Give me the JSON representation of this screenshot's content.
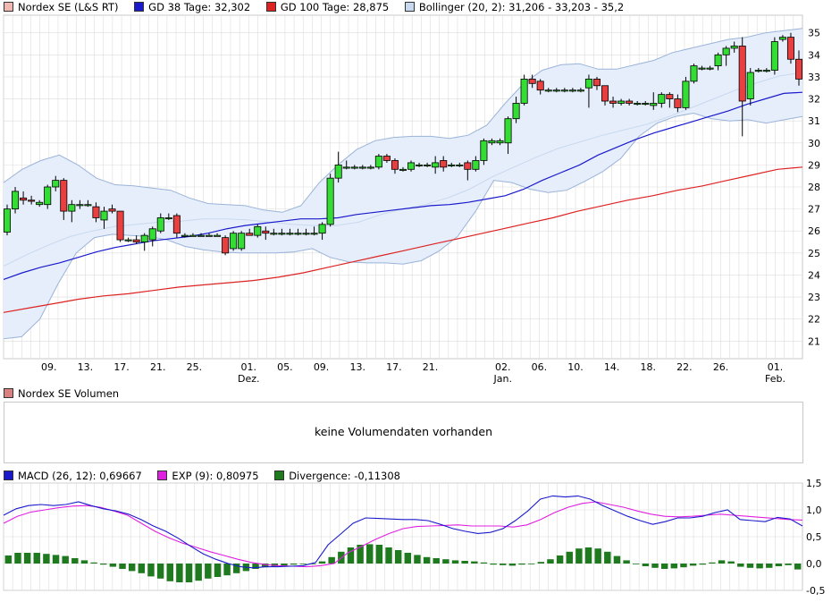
{
  "colors": {
    "up_candle": "#33dd33",
    "down_candle": "#e84040",
    "sma38": "#1a1acc",
    "sma100": "#dd2222",
    "bollinger_fill": "#e6eefb",
    "bollinger_band": "#9ab3d8",
    "bollinger_mid": "#c8d8ee",
    "macd": "#1a1acc",
    "signal": "#e020e0",
    "histogram": "#1f7a1f",
    "grid": "#dcdcdc"
  },
  "legend": {
    "price": "Nordex SE (L&S RT)",
    "sma38": "GD 38 Tage: 32,302",
    "sma100": "GD 100 Tage: 28,875",
    "bollinger": "Bollinger (20, 2): 31,206 - 33,203 - 35,2",
    "volume": "Nordex SE Volumen",
    "macd": "MACD (26, 12): 0,69667",
    "exp": "EXP (9): 0,80975",
    "divergence": "Divergence: -0,11308"
  },
  "volume_panel": {
    "message": "keine Volumendaten vorhanden"
  },
  "chart_data": [
    {
      "type": "candlestick",
      "ylim": [
        20.2,
        35.8
      ],
      "y_ticks": [
        "21",
        "22",
        "23",
        "24",
        "25",
        "26",
        "27",
        "28",
        "29",
        "30",
        "31",
        "32",
        "33",
        "34",
        "35"
      ],
      "x_labels": [
        {
          "label": "09.",
          "index": 2
        },
        {
          "label": "13.",
          "index": 4
        },
        {
          "label": "17.",
          "index": 6
        },
        {
          "label": "21.",
          "index": 8
        },
        {
          "label": "25.",
          "index": 10
        },
        {
          "label": "01.",
          "index": 13,
          "month": "Dez."
        },
        {
          "label": "05.",
          "index": 15
        },
        {
          "label": "09.",
          "index": 17
        },
        {
          "label": "13.",
          "index": 19
        },
        {
          "label": "17.",
          "index": 21
        },
        {
          "label": "21.",
          "index": 23
        },
        {
          "label": "02.",
          "index": 27,
          "month": "Jan."
        },
        {
          "label": "06.",
          "index": 29
        },
        {
          "label": "10.",
          "index": 31
        },
        {
          "label": "14.",
          "index": 33
        },
        {
          "label": "18.",
          "index": 35
        },
        {
          "label": "22.",
          "index": 37
        },
        {
          "label": "26.",
          "index": 39
        },
        {
          "label": "01.",
          "index": 42,
          "month": "Feb."
        }
      ],
      "candles": [
        {
          "o": 25.95,
          "h": 27.2,
          "l": 25.8,
          "c": 27.0
        },
        {
          "o": 27.0,
          "h": 28.0,
          "l": 26.8,
          "c": 27.8
        },
        {
          "o": 27.5,
          "h": 27.8,
          "l": 27.2,
          "c": 27.4
        },
        {
          "o": 27.4,
          "h": 27.6,
          "l": 27.2,
          "c": 27.35
        },
        {
          "o": 27.2,
          "h": 27.4,
          "l": 27.1,
          "c": 27.3
        },
        {
          "o": 27.2,
          "h": 28.1,
          "l": 27.0,
          "c": 28.0
        },
        {
          "o": 28.0,
          "h": 28.5,
          "l": 27.8,
          "c": 28.3
        },
        {
          "o": 28.3,
          "h": 28.4,
          "l": 26.5,
          "c": 26.9
        },
        {
          "o": 26.9,
          "h": 27.4,
          "l": 26.4,
          "c": 27.2
        },
        {
          "o": 27.2,
          "h": 27.4,
          "l": 27.0,
          "c": 27.2
        },
        {
          "o": 27.2,
          "h": 27.4,
          "l": 27.1,
          "c": 27.2
        },
        {
          "o": 27.1,
          "h": 27.3,
          "l": 26.4,
          "c": 26.6
        },
        {
          "o": 26.5,
          "h": 27.1,
          "l": 26.1,
          "c": 26.9
        },
        {
          "o": 27.0,
          "h": 27.2,
          "l": 26.8,
          "c": 26.9
        },
        {
          "o": 26.9,
          "h": 26.9,
          "l": 25.5,
          "c": 25.6
        },
        {
          "o": 25.6,
          "h": 25.7,
          "l": 25.5,
          "c": 25.6
        },
        {
          "o": 25.6,
          "h": 25.8,
          "l": 25.4,
          "c": 25.5
        },
        {
          "o": 25.5,
          "h": 25.9,
          "l": 25.1,
          "c": 25.8
        },
        {
          "o": 25.6,
          "h": 26.2,
          "l": 25.3,
          "c": 26.1
        },
        {
          "o": 26.0,
          "h": 26.8,
          "l": 25.9,
          "c": 26.6
        },
        {
          "o": 26.6,
          "h": 26.8,
          "l": 26.5,
          "c": 26.6
        },
        {
          "o": 26.7,
          "h": 26.8,
          "l": 25.7,
          "c": 25.9
        },
        {
          "o": 25.8,
          "h": 25.9,
          "l": 25.7,
          "c": 25.8
        },
        {
          "o": 25.8,
          "h": 25.9,
          "l": 25.8,
          "c": 25.8
        },
        {
          "o": 25.8,
          "h": 25.9,
          "l": 25.8,
          "c": 25.8
        },
        {
          "o": 25.8,
          "h": 25.9,
          "l": 25.8,
          "c": 25.8
        },
        {
          "o": 25.8,
          "h": 25.9,
          "l": 25.8,
          "c": 25.8
        },
        {
          "o": 25.7,
          "h": 25.8,
          "l": 24.9,
          "c": 25.0
        },
        {
          "o": 25.2,
          "h": 26.0,
          "l": 25.1,
          "c": 25.9
        },
        {
          "o": 25.2,
          "h": 26.0,
          "l": 25.1,
          "c": 25.9
        },
        {
          "o": 25.9,
          "h": 26.1,
          "l": 25.8,
          "c": 25.8
        },
        {
          "o": 25.8,
          "h": 26.3,
          "l": 25.7,
          "c": 26.2
        },
        {
          "o": 26.0,
          "h": 26.2,
          "l": 25.6,
          "c": 25.9
        },
        {
          "o": 25.9,
          "h": 26.1,
          "l": 25.8,
          "c": 25.9
        },
        {
          "o": 25.9,
          "h": 26.1,
          "l": 25.8,
          "c": 25.9
        },
        {
          "o": 25.9,
          "h": 26.1,
          "l": 25.8,
          "c": 25.9
        },
        {
          "o": 25.9,
          "h": 26.1,
          "l": 25.8,
          "c": 25.9
        },
        {
          "o": 25.9,
          "h": 26.1,
          "l": 25.8,
          "c": 25.9
        },
        {
          "o": 25.9,
          "h": 26.2,
          "l": 25.8,
          "c": 25.9
        },
        {
          "o": 25.9,
          "h": 26.4,
          "l": 25.6,
          "c": 26.3
        },
        {
          "o": 26.3,
          "h": 28.6,
          "l": 26.2,
          "c": 28.4
        },
        {
          "o": 28.4,
          "h": 29.6,
          "l": 28.2,
          "c": 29.0
        },
        {
          "o": 28.9,
          "h": 29.2,
          "l": 28.8,
          "c": 28.9
        },
        {
          "o": 28.9,
          "h": 29.0,
          "l": 28.8,
          "c": 28.9
        },
        {
          "o": 28.9,
          "h": 29.0,
          "l": 28.8,
          "c": 28.9
        },
        {
          "o": 28.9,
          "h": 29.0,
          "l": 28.8,
          "c": 28.9
        },
        {
          "o": 28.9,
          "h": 29.5,
          "l": 28.8,
          "c": 29.4
        },
        {
          "o": 29.4,
          "h": 29.5,
          "l": 29.1,
          "c": 29.2
        },
        {
          "o": 29.2,
          "h": 29.3,
          "l": 28.6,
          "c": 28.8
        },
        {
          "o": 28.8,
          "h": 28.9,
          "l": 28.7,
          "c": 28.8
        },
        {
          "o": 28.8,
          "h": 29.2,
          "l": 28.7,
          "c": 29.1
        },
        {
          "o": 29.0,
          "h": 29.1,
          "l": 28.9,
          "c": 29.0
        },
        {
          "o": 29.0,
          "h": 29.1,
          "l": 28.9,
          "c": 29.0
        },
        {
          "o": 28.9,
          "h": 29.4,
          "l": 28.6,
          "c": 29.1
        },
        {
          "o": 29.2,
          "h": 29.4,
          "l": 28.7,
          "c": 28.9
        },
        {
          "o": 29.0,
          "h": 29.1,
          "l": 28.9,
          "c": 29.0
        },
        {
          "o": 29.0,
          "h": 29.1,
          "l": 28.9,
          "c": 29.0
        },
        {
          "o": 29.1,
          "h": 29.2,
          "l": 28.3,
          "c": 28.8
        },
        {
          "o": 28.8,
          "h": 29.4,
          "l": 28.7,
          "c": 29.2
        },
        {
          "o": 29.2,
          "h": 30.2,
          "l": 29.0,
          "c": 30.1
        },
        {
          "o": 30.0,
          "h": 30.2,
          "l": 29.9,
          "c": 30.1
        },
        {
          "o": 30.0,
          "h": 30.2,
          "l": 29.9,
          "c": 30.1
        },
        {
          "o": 30.0,
          "h": 31.2,
          "l": 29.5,
          "c": 31.1
        },
        {
          "o": 31.1,
          "h": 32.1,
          "l": 30.9,
          "c": 31.8
        },
        {
          "o": 31.8,
          "h": 33.1,
          "l": 31.7,
          "c": 32.9
        },
        {
          "o": 32.9,
          "h": 33.1,
          "l": 32.5,
          "c": 32.7
        },
        {
          "o": 32.8,
          "h": 32.9,
          "l": 32.2,
          "c": 32.4
        },
        {
          "o": 32.4,
          "h": 32.5,
          "l": 32.3,
          "c": 32.4
        },
        {
          "o": 32.4,
          "h": 32.5,
          "l": 32.3,
          "c": 32.4
        },
        {
          "o": 32.4,
          "h": 32.5,
          "l": 32.3,
          "c": 32.4
        },
        {
          "o": 32.4,
          "h": 32.5,
          "l": 32.3,
          "c": 32.4
        },
        {
          "o": 32.4,
          "h": 32.5,
          "l": 32.3,
          "c": 32.4
        },
        {
          "o": 32.5,
          "h": 33.1,
          "l": 31.6,
          "c": 32.9
        },
        {
          "o": 32.9,
          "h": 33.0,
          "l": 32.4,
          "c": 32.6
        },
        {
          "o": 32.6,
          "h": 32.6,
          "l": 31.7,
          "c": 31.9
        },
        {
          "o": 31.9,
          "h": 32.1,
          "l": 31.6,
          "c": 31.8
        },
        {
          "o": 31.8,
          "h": 32.0,
          "l": 31.7,
          "c": 31.9
        },
        {
          "o": 31.9,
          "h": 32.0,
          "l": 31.7,
          "c": 31.8
        },
        {
          "o": 31.8,
          "h": 31.9,
          "l": 31.7,
          "c": 31.8
        },
        {
          "o": 31.8,
          "h": 31.9,
          "l": 31.7,
          "c": 31.8
        },
        {
          "o": 31.7,
          "h": 32.3,
          "l": 31.5,
          "c": 31.8
        },
        {
          "o": 31.8,
          "h": 32.3,
          "l": 31.6,
          "c": 32.2
        },
        {
          "o": 32.2,
          "h": 32.3,
          "l": 31.6,
          "c": 32.0
        },
        {
          "o": 32.0,
          "h": 32.2,
          "l": 31.4,
          "c": 31.6
        },
        {
          "o": 31.6,
          "h": 33.0,
          "l": 31.5,
          "c": 32.8
        },
        {
          "o": 32.8,
          "h": 33.6,
          "l": 32.7,
          "c": 33.5
        },
        {
          "o": 33.4,
          "h": 33.5,
          "l": 33.3,
          "c": 33.4
        },
        {
          "o": 33.4,
          "h": 33.5,
          "l": 33.3,
          "c": 33.4
        },
        {
          "o": 33.5,
          "h": 34.1,
          "l": 33.3,
          "c": 34.0
        },
        {
          "o": 34.0,
          "h": 34.4,
          "l": 33.5,
          "c": 34.3
        },
        {
          "o": 34.3,
          "h": 34.6,
          "l": 34.1,
          "c": 34.4
        },
        {
          "o": 34.4,
          "h": 34.8,
          "l": 30.3,
          "c": 31.9
        },
        {
          "o": 32.0,
          "h": 33.4,
          "l": 31.7,
          "c": 33.2
        },
        {
          "o": 33.3,
          "h": 33.4,
          "l": 33.2,
          "c": 33.3
        },
        {
          "o": 33.3,
          "h": 33.4,
          "l": 33.2,
          "c": 33.3
        },
        {
          "o": 33.3,
          "h": 34.8,
          "l": 33.1,
          "c": 34.6
        },
        {
          "o": 34.7,
          "h": 34.9,
          "l": 34.6,
          "c": 34.8
        },
        {
          "o": 34.8,
          "h": 35.0,
          "l": 33.6,
          "c": 33.8
        },
        {
          "o": 33.8,
          "h": 34.2,
          "l": 32.6,
          "c": 32.9
        }
      ],
      "gd38": [
        23.8,
        24.1,
        24.35,
        24.55,
        24.8,
        25.05,
        25.25,
        25.4,
        25.55,
        25.65,
        25.75,
        25.9,
        26.1,
        26.25,
        26.35,
        26.45,
        26.55,
        26.55,
        26.6,
        26.75,
        26.85,
        26.95,
        27.05,
        27.15,
        27.2,
        27.3,
        27.45,
        27.6,
        27.9,
        28.3,
        28.65,
        29.0,
        29.45,
        29.8,
        30.15,
        30.45,
        30.7,
        30.95,
        31.2,
        31.45,
        31.75,
        32.0,
        32.25,
        32.3
      ],
      "gd100": [
        22.3,
        22.5,
        22.7,
        22.9,
        23.05,
        23.15,
        23.3,
        23.45,
        23.55,
        23.65,
        23.75,
        23.9,
        24.1,
        24.35,
        24.6,
        24.85,
        25.1,
        25.35,
        25.6,
        25.85,
        26.1,
        26.35,
        26.6,
        26.9,
        27.15,
        27.4,
        27.6,
        27.85,
        28.05,
        28.3,
        28.55,
        28.8,
        28.9
      ],
      "bollinger_upper": [
        28.2,
        28.8,
        29.2,
        29.45,
        29.0,
        28.4,
        28.1,
        28.05,
        27.95,
        27.85,
        27.5,
        27.25,
        27.2,
        27.15,
        26.95,
        26.85,
        27.15,
        28.2,
        29.0,
        29.7,
        30.1,
        30.25,
        30.3,
        30.3,
        30.2,
        30.35,
        30.8,
        31.8,
        32.7,
        33.3,
        33.55,
        33.6,
        33.35,
        33.35,
        33.55,
        33.75,
        34.1,
        34.3,
        34.5,
        34.7,
        34.8,
        35.0,
        35.1,
        35.2
      ],
      "bollinger_lower": [
        21.1,
        21.2,
        22.0,
        23.6,
        25.0,
        25.7,
        25.85,
        25.8,
        25.75,
        25.6,
        25.3,
        25.15,
        25.05,
        25.0,
        25.0,
        25.0,
        25.05,
        25.2,
        24.8,
        24.6,
        24.55,
        24.55,
        24.5,
        24.65,
        25.1,
        25.75,
        26.9,
        28.3,
        28.2,
        27.9,
        27.75,
        27.85,
        28.25,
        28.7,
        29.3,
        30.3,
        30.9,
        31.2,
        31.35,
        31.1,
        31.0,
        31.05,
        30.9,
        31.05,
        31.2
      ],
      "bollinger_mid": [
        24.4,
        24.9,
        25.35,
        25.75,
        26.0,
        26.2,
        26.3,
        26.4,
        26.45,
        26.55,
        26.55,
        26.5,
        26.4,
        26.3,
        26.25,
        26.25,
        26.4,
        26.75,
        27.0,
        27.2,
        27.5,
        27.9,
        28.45,
        28.9,
        29.35,
        29.75,
        30.05,
        30.35,
        30.6,
        30.85,
        31.2,
        31.6,
        32.0,
        32.4,
        32.75,
        33.05,
        33.2
      ]
    },
    {
      "type": "line+bar",
      "ylim": [
        -0.5,
        1.5
      ],
      "y_ticks": [
        "1,5",
        "1,0",
        "0,5",
        "0,0",
        "-0,5"
      ],
      "macd": [
        0.9,
        1.02,
        1.08,
        1.1,
        1.08,
        1.1,
        1.15,
        1.08,
        1.02,
        0.98,
        0.92,
        0.82,
        0.7,
        0.6,
        0.47,
        0.32,
        0.18,
        0.08,
        0.0,
        -0.06,
        -0.08,
        -0.06,
        -0.06,
        -0.05,
        -0.04,
        0.02,
        0.35,
        0.55,
        0.75,
        0.85,
        0.84,
        0.83,
        0.82,
        0.82,
        0.8,
        0.73,
        0.65,
        0.6,
        0.56,
        0.58,
        0.65,
        0.8,
        0.98,
        1.2,
        1.26,
        1.24,
        1.26,
        1.2,
        1.08,
        0.98,
        0.88,
        0.8,
        0.73,
        0.78,
        0.85,
        0.85,
        0.88,
        0.95,
        1.0,
        0.82,
        0.8,
        0.78,
        0.86,
        0.83,
        0.7
      ],
      "signal": [
        0.75,
        0.88,
        0.96,
        1.0,
        1.04,
        1.07,
        1.08,
        1.05,
        0.98,
        0.9,
        0.75,
        0.6,
        0.48,
        0.38,
        0.3,
        0.22,
        0.15,
        0.08,
        0.02,
        -0.02,
        -0.04,
        -0.05,
        -0.06,
        -0.04,
        0.0,
        0.2,
        0.32,
        0.45,
        0.56,
        0.65,
        0.69,
        0.7,
        0.71,
        0.72,
        0.7,
        0.7,
        0.7,
        0.68,
        0.72,
        0.82,
        0.95,
        1.05,
        1.12,
        1.15,
        1.1,
        1.05,
        0.98,
        0.92,
        0.88,
        0.87,
        0.88,
        0.9,
        0.92,
        0.9,
        0.88,
        0.86,
        0.84,
        0.82,
        0.81
      ],
      "divergence": [
        0.15,
        0.2,
        0.2,
        0.2,
        0.18,
        0.16,
        0.14,
        0.1,
        0.06,
        0.02,
        -0.02,
        -0.06,
        -0.1,
        -0.14,
        -0.18,
        -0.24,
        -0.28,
        -0.33,
        -0.35,
        -0.35,
        -0.32,
        -0.28,
        -0.25,
        -0.22,
        -0.18,
        -0.14,
        -0.1,
        -0.07,
        -0.05,
        -0.04,
        -0.02,
        -0.01,
        0.0,
        0.04,
        0.12,
        0.22,
        0.3,
        0.35,
        0.36,
        0.35,
        0.3,
        0.25,
        0.2,
        0.16,
        0.12,
        0.1,
        0.08,
        0.06,
        0.05,
        0.04,
        0.02,
        -0.02,
        -0.03,
        -0.04,
        -0.02,
        0.0,
        0.03,
        0.08,
        0.15,
        0.22,
        0.28,
        0.3,
        0.28,
        0.22,
        0.14,
        0.06,
        0.0,
        -0.05,
        -0.08,
        -0.1,
        -0.09,
        -0.07,
        -0.04,
        -0.02,
        0.02,
        0.06,
        0.04,
        -0.06,
        -0.08,
        -0.09,
        -0.08,
        -0.05,
        -0.03,
        -0.11
      ]
    }
  ]
}
